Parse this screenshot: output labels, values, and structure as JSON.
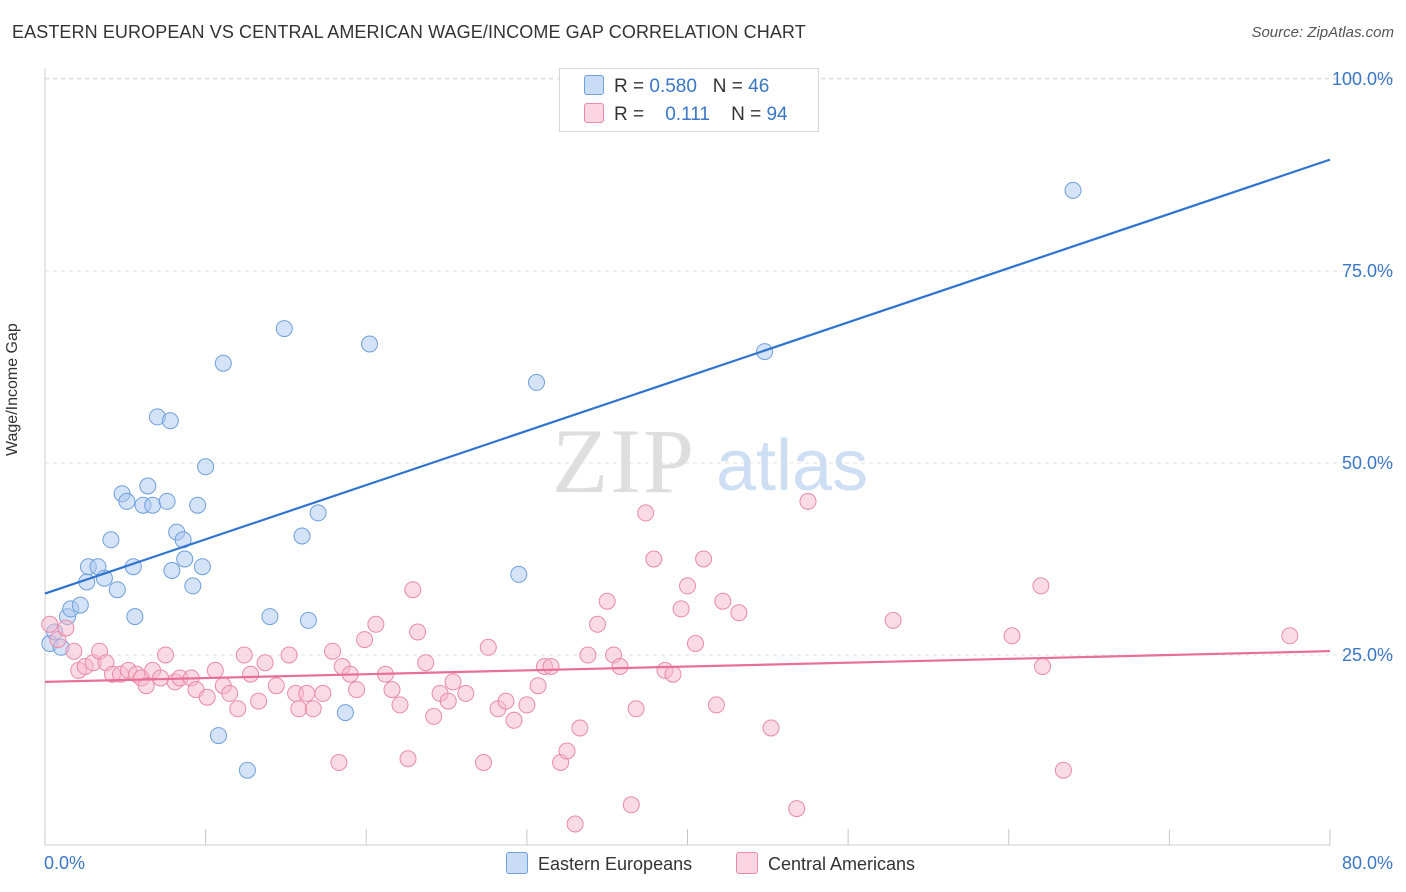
{
  "header": {
    "title": "EASTERN EUROPEAN VS CENTRAL AMERICAN WAGE/INCOME GAP CORRELATION CHART",
    "source": "Source: ZipAtlas.com"
  },
  "watermark": {
    "zip": "ZIP",
    "atlas": "atlas"
  },
  "stats_legend": {
    "rows": [
      {
        "r_label": "R =",
        "r_value": "0.580",
        "n_label": "N =",
        "n_value": "46",
        "color": "#aac8f0"
      },
      {
        "r_label": "R =",
        "r_value": "0.111",
        "n_label": "N =",
        "n_value": "94",
        "color": "#f6b8cb"
      }
    ]
  },
  "chart_data": {
    "type": "scatter",
    "title": "EASTERN EUROPEAN VS CENTRAL AMERICAN WAGE/INCOME GAP CORRELATION CHART",
    "xlabel": "",
    "ylabel": "Wage/Income Gap",
    "xlim": [
      0,
      80
    ],
    "ylim": [
      0,
      105
    ],
    "x_tick_labels": [
      "0.0%",
      "80.0%"
    ],
    "y_ticks": [
      25,
      50,
      75,
      100
    ],
    "y_tick_labels": [
      "25.0%",
      "50.0%",
      "75.0%",
      "100.0%"
    ],
    "grid": "horizontal dashed",
    "legend_position": "top-center and bottom",
    "series": [
      {
        "name": "Eastern Europeans",
        "color": "#aac8f0",
        "stroke": "#6f9fdc",
        "line_color": "#2f73d0",
        "trend": {
          "x0": 0,
          "y0": 33,
          "x1": 80,
          "y1": 89.5
        },
        "points": [
          [
            0.3,
            26.5
          ],
          [
            0.6,
            28
          ],
          [
            1,
            26
          ],
          [
            1.4,
            30
          ],
          [
            1.6,
            31
          ],
          [
            2.2,
            31.5
          ],
          [
            2.6,
            34.5
          ],
          [
            2.7,
            36.5
          ],
          [
            3.3,
            36.5
          ],
          [
            3.7,
            35
          ],
          [
            4.1,
            40
          ],
          [
            4.5,
            33.5
          ],
          [
            4.8,
            46
          ],
          [
            5.1,
            45
          ],
          [
            5.5,
            36.5
          ],
          [
            5.6,
            30
          ],
          [
            6.1,
            44.5
          ],
          [
            6.4,
            47
          ],
          [
            6.7,
            44.5
          ],
          [
            7,
            56
          ],
          [
            7.6,
            45
          ],
          [
            7.8,
            55.5
          ],
          [
            7.9,
            36
          ],
          [
            8.2,
            41
          ],
          [
            8.6,
            40
          ],
          [
            8.7,
            37.5
          ],
          [
            9.2,
            34
          ],
          [
            9.5,
            44.5
          ],
          [
            9.8,
            36.5
          ],
          [
            10,
            49.5
          ],
          [
            10.8,
            14.5
          ],
          [
            11.1,
            63
          ],
          [
            12.6,
            10
          ],
          [
            14,
            30
          ],
          [
            14.9,
            67.5
          ],
          [
            16,
            40.5
          ],
          [
            16.4,
            29.5
          ],
          [
            17,
            43.5
          ],
          [
            18.7,
            17.5
          ],
          [
            20.2,
            65.5
          ],
          [
            29.5,
            35.5
          ],
          [
            30.6,
            60.5
          ],
          [
            44.8,
            64.5
          ],
          [
            64,
            85.5
          ]
        ]
      },
      {
        "name": "Central Americans",
        "color": "#f6b8cb",
        "stroke": "#e98aa8",
        "line_color": "#e76f98",
        "trend": {
          "x0": 0,
          "y0": 21.5,
          "x1": 80,
          "y1": 25.5
        },
        "points": [
          [
            0.3,
            29
          ],
          [
            0.8,
            27
          ],
          [
            1.3,
            28.5
          ],
          [
            1.8,
            25.5
          ],
          [
            2.1,
            23
          ],
          [
            2.5,
            23.5
          ],
          [
            3,
            24
          ],
          [
            3.4,
            25.5
          ],
          [
            3.8,
            24
          ],
          [
            4.2,
            22.5
          ],
          [
            4.7,
            22.5
          ],
          [
            5.2,
            23
          ],
          [
            5.7,
            22.5
          ],
          [
            6,
            22
          ],
          [
            6.3,
            21
          ],
          [
            6.7,
            23
          ],
          [
            7.2,
            22
          ],
          [
            7.5,
            25
          ],
          [
            8.1,
            21.5
          ],
          [
            8.4,
            22
          ],
          [
            9.1,
            22
          ],
          [
            9.4,
            20.5
          ],
          [
            10.1,
            19.5
          ],
          [
            10.6,
            23
          ],
          [
            11.1,
            21
          ],
          [
            11.5,
            20
          ],
          [
            12,
            18
          ],
          [
            12.4,
            25
          ],
          [
            12.8,
            22.5
          ],
          [
            13.3,
            19
          ],
          [
            13.7,
            24
          ],
          [
            14.4,
            21
          ],
          [
            15.2,
            25
          ],
          [
            15.6,
            20
          ],
          [
            15.8,
            18
          ],
          [
            16.3,
            20
          ],
          [
            16.7,
            18
          ],
          [
            17.3,
            20
          ],
          [
            17.9,
            25.5
          ],
          [
            18.3,
            11
          ],
          [
            18.5,
            23.5
          ],
          [
            19,
            22.5
          ],
          [
            19.4,
            20.5
          ],
          [
            19.9,
            27
          ],
          [
            20.6,
            29
          ],
          [
            21.2,
            22.5
          ],
          [
            21.6,
            20.5
          ],
          [
            22.1,
            18.5
          ],
          [
            22.6,
            11.5
          ],
          [
            22.9,
            33.5
          ],
          [
            23.2,
            28
          ],
          [
            23.7,
            24
          ],
          [
            24.2,
            17
          ],
          [
            24.6,
            20
          ],
          [
            25.1,
            19
          ],
          [
            25.4,
            21.5
          ],
          [
            26.2,
            20
          ],
          [
            27.3,
            11
          ],
          [
            27.6,
            26
          ],
          [
            28.2,
            18
          ],
          [
            28.7,
            19
          ],
          [
            29.2,
            16.5
          ],
          [
            30,
            18.5
          ],
          [
            30.7,
            21
          ],
          [
            31.1,
            23.5
          ],
          [
            31.5,
            23.5
          ],
          [
            32.1,
            11
          ],
          [
            32.5,
            12.5
          ],
          [
            33,
            3
          ],
          [
            33.3,
            15.5
          ],
          [
            33.8,
            25
          ],
          [
            34.4,
            29
          ],
          [
            35,
            32
          ],
          [
            35.4,
            25
          ],
          [
            35.8,
            23.5
          ],
          [
            36.5,
            5.5
          ],
          [
            36.8,
            18
          ],
          [
            37.4,
            43.5
          ],
          [
            37.9,
            37.5
          ],
          [
            38.6,
            23
          ],
          [
            39.1,
            22.5
          ],
          [
            39.6,
            31
          ],
          [
            40,
            34
          ],
          [
            40.5,
            26.5
          ],
          [
            41,
            37.5
          ],
          [
            41.8,
            18.5
          ],
          [
            42.2,
            32
          ],
          [
            43.2,
            30.5
          ],
          [
            45.2,
            15.5
          ],
          [
            46.8,
            5
          ],
          [
            47.5,
            45
          ],
          [
            52.8,
            29.5
          ],
          [
            60.2,
            27.5
          ],
          [
            62,
            34
          ],
          [
            62.1,
            23.5
          ],
          [
            63.4,
            10
          ],
          [
            77.5,
            27.5
          ]
        ]
      }
    ]
  }
}
